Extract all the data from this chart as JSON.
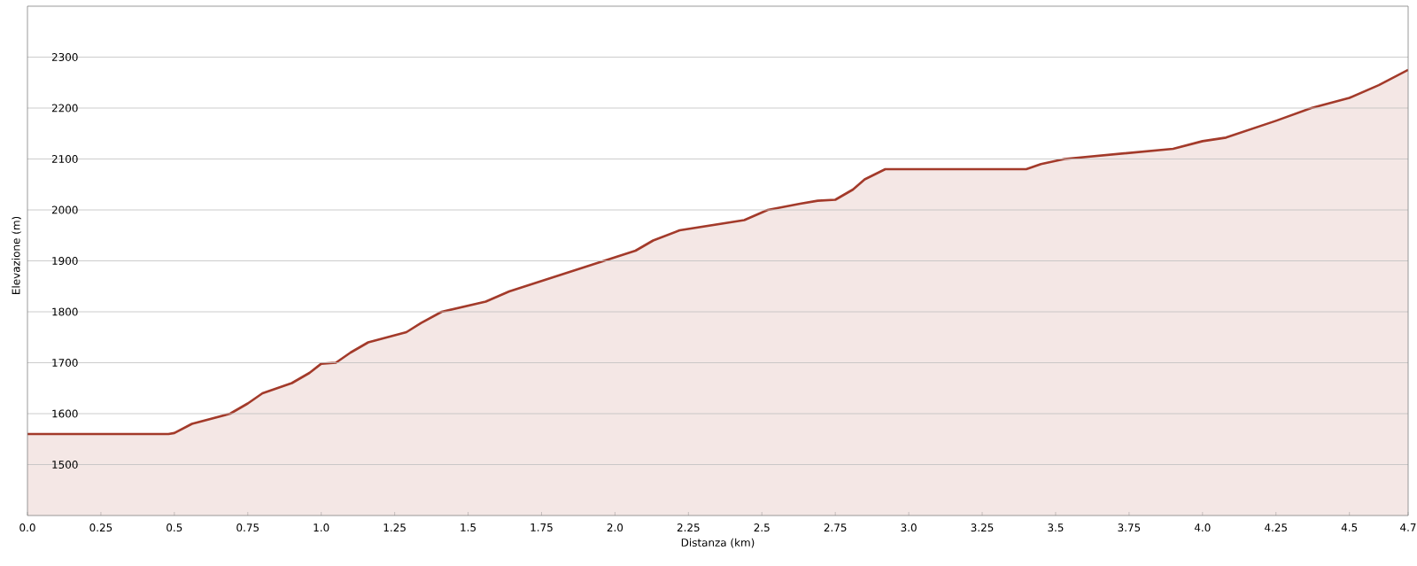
{
  "chart_data": {
    "type": "area",
    "xlabel": "Distanza  (km)",
    "ylabel": "Elevazione (m)",
    "x": [
      0,
      0.48,
      0.5,
      0.56,
      0.69,
      0.75,
      0.8,
      0.9,
      0.96,
      1.0,
      1.05,
      1.1,
      1.16,
      1.29,
      1.34,
      1.41,
      1.56,
      1.64,
      2.07,
      2.13,
      2.22,
      2.44,
      2.52,
      2.63,
      2.69,
      2.75,
      2.81,
      2.85,
      2.92,
      3.4,
      3.45,
      3.53,
      3.9,
      4.0,
      4.08,
      4.25,
      4.37,
      4.5,
      4.6,
      4.7
    ],
    "series": [
      {
        "color": "#a33a2a",
        "values": [
          1560,
          1560,
          1562,
          1580,
          1600,
          1620,
          1640,
          1660,
          1680,
          1698,
          1700,
          1720,
          1740,
          1760,
          1778,
          1800,
          1820,
          1840,
          1920,
          1940,
          1960,
          1980,
          2000,
          2012,
          2018,
          2020,
          2040,
          2060,
          2080,
          2080,
          2090,
          2100,
          2120,
          2135,
          2142,
          2175,
          2200,
          2220,
          2245,
          2275
        ]
      }
    ],
    "xlim": [
      0,
      4.7
    ],
    "ylim": [
      1400,
      2400
    ],
    "xticks": [
      {
        "value": 0,
        "label": "0.0"
      },
      0.25,
      0.5,
      0.75,
      {
        "value": 1,
        "label": "1.0"
      },
      1.25,
      1.5,
      1.75,
      {
        "value": 2,
        "label": "2.0"
      },
      2.25,
      2.5,
      2.75,
      {
        "value": 3,
        "label": "3.0"
      },
      3.25,
      3.5,
      3.75,
      {
        "value": 4,
        "label": "4.0"
      },
      4.25,
      4.5,
      4.7
    ],
    "yticks": [
      1500,
      1600,
      1700,
      1800,
      1900,
      2000,
      2100,
      2200,
      2300
    ],
    "grid": "y"
  }
}
